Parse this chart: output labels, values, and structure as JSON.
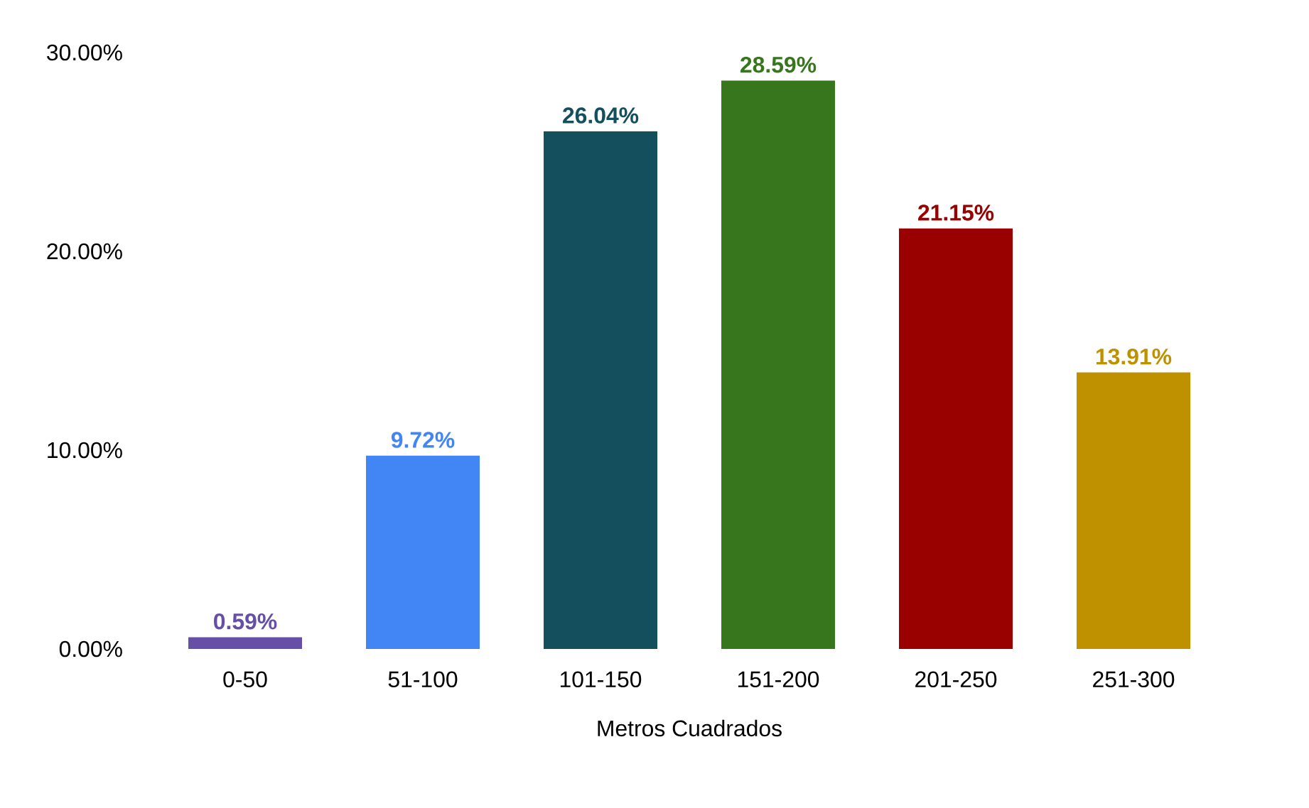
{
  "chart_data": {
    "type": "bar",
    "xlabel": "Metros Cuadrados",
    "categories": [
      "0-50",
      "51-100",
      "101-150",
      "151-200",
      "201-250",
      "251-300"
    ],
    "values": [
      0.59,
      9.72,
      26.04,
      28.59,
      21.15,
      13.91
    ],
    "value_labels": [
      "0.59%",
      "9.72%",
      "26.04%",
      "28.59%",
      "21.15%",
      "13.91%"
    ],
    "colors": [
      "#674ea7",
      "#4285f4",
      "#134f5c",
      "#38761d",
      "#990000",
      "#bf9000"
    ],
    "ylim": [
      0,
      30
    ],
    "yticks": [
      {
        "value": 0,
        "label": "0.00%"
      },
      {
        "value": 10,
        "label": "10.00%"
      },
      {
        "value": 20,
        "label": "20.00%"
      },
      {
        "value": 30,
        "label": "30.00%"
      }
    ],
    "grid": false
  }
}
